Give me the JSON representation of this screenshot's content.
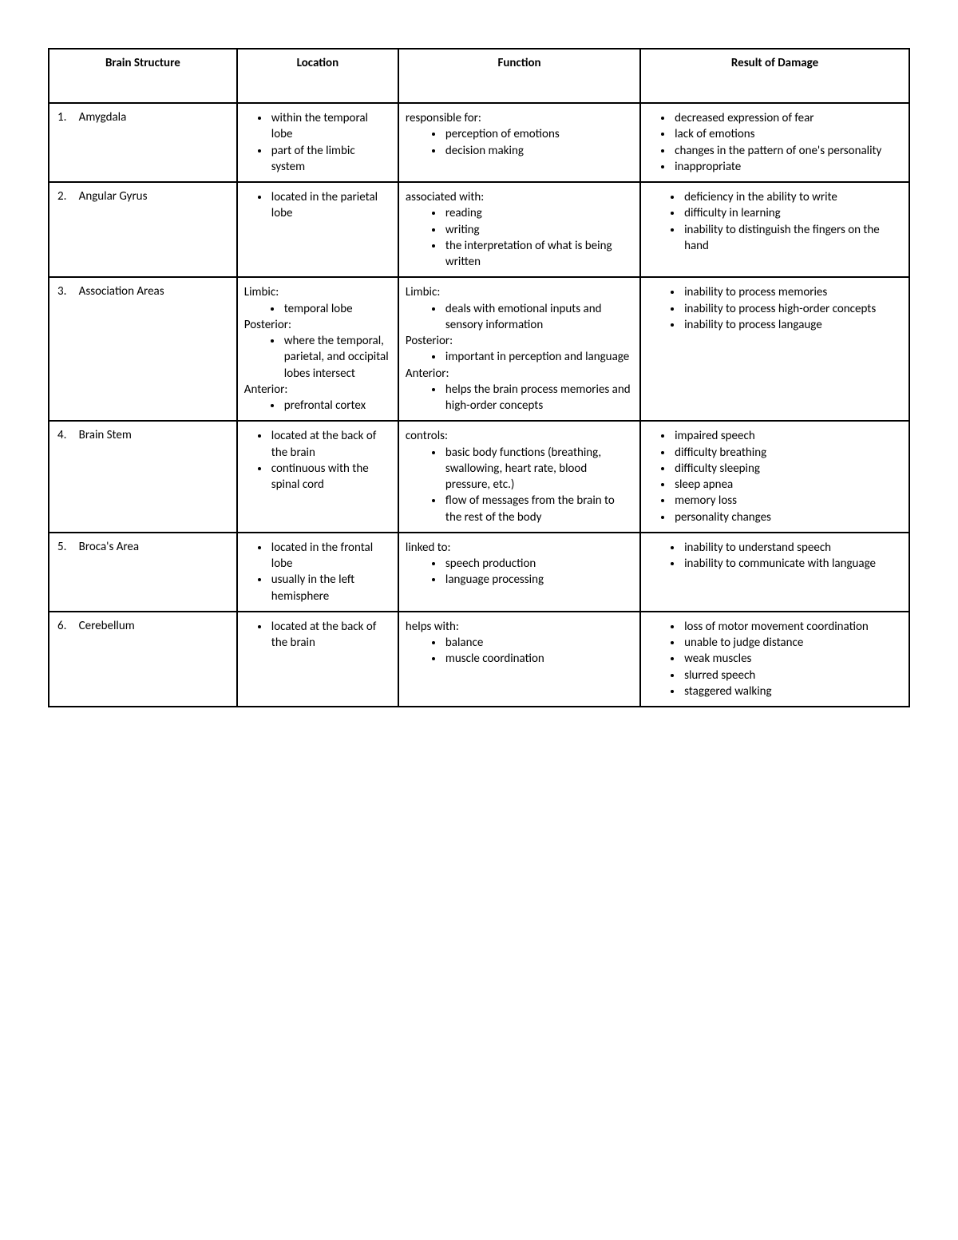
{
  "table": {
    "columns": [
      "Brain Structure",
      "Location",
      "Function",
      "Result of Damage"
    ],
    "col_widths_pct": [
      21,
      18,
      27,
      30
    ],
    "border_color": "#000000",
    "background_color": "#ffffff",
    "font_family": "Calibri",
    "font_size_pt": 11,
    "rows": [
      {
        "num": "1.",
        "name": "Amygdala",
        "location": {
          "bullets": [
            "within the temporal lobe",
            "part of the limbic system"
          ]
        },
        "function": {
          "intro": "responsible for:",
          "bullets": [
            "perception of emotions",
            "decision making"
          ]
        },
        "damage": {
          "bullets": [
            "decreased expression of fear",
            "lack of emotions",
            "changes in the pattern of one's personality",
            "inappropriate"
          ]
        }
      },
      {
        "num": "2.",
        "name": "Angular Gyrus",
        "location": {
          "bullets": [
            "located in the parietal lobe"
          ]
        },
        "function": {
          "intro": "associated with:",
          "bullets": [
            "reading",
            "writing",
            "the interpretation of what is being written"
          ]
        },
        "damage": {
          "bullets_indent": true,
          "bullets": [
            "deficiency in the ability to write",
            "difficulty in learning",
            "inability to distinguish the fingers on the hand"
          ]
        }
      },
      {
        "num": "3.",
        "name": "Association Areas",
        "location": {
          "sections": [
            {
              "label": "Limbic:",
              "bullets": [
                "temporal lobe"
              ]
            },
            {
              "label": "Posterior:",
              "bullets": [
                "where the temporal, parietal, and occipital lobes intersect"
              ]
            },
            {
              "label": "Anterior:",
              "bullets": [
                "prefrontal cortex"
              ]
            }
          ]
        },
        "function": {
          "sections": [
            {
              "label": "Limbic:",
              "bullets": [
                "deals with emotional inputs and sensory information"
              ]
            },
            {
              "label": "Posterior:",
              "bullets": [
                "important in perception and language"
              ]
            },
            {
              "label": "Anterior:",
              "bullets": [
                "helps the brain process memories and high-order concepts"
              ]
            }
          ]
        },
        "damage": {
          "bullets_indent": true,
          "bullets": [
            "inability to process memories",
            "inability to process high-order concepts",
            "inability to process langauge"
          ]
        }
      },
      {
        "num": "4.",
        "name": "Brain Stem",
        "location": {
          "bullets": [
            "located at the back of the brain",
            "continuous with the spinal cord"
          ]
        },
        "function": {
          "intro": "controls:",
          "bullets": [
            "basic body functions (breathing, swallowing, heart rate, blood pressure, etc.)",
            "flow of messages from the brain to the rest of the body"
          ]
        },
        "damage": {
          "bullets": [
            "impaired speech",
            "difficulty breathing",
            "difficulty sleeping",
            "sleep apnea",
            "memory loss",
            "personality changes"
          ]
        }
      },
      {
        "num": "5.",
        "name": "Broca's Area",
        "location": {
          "bullets": [
            "located in the frontal lobe",
            "usually in the left hemisphere"
          ]
        },
        "function": {
          "intro": "linked to:",
          "bullets": [
            "speech production",
            "language processing"
          ]
        },
        "damage": {
          "bullets_indent": true,
          "bullets": [
            "inability to understand speech",
            "inability to communicate with language"
          ]
        }
      },
      {
        "num": "6.",
        "name": "Cerebellum",
        "location": {
          "bullets": [
            "located at the back of the brain"
          ]
        },
        "function": {
          "intro": "helps with:",
          "bullets": [
            "balance",
            "muscle coordination"
          ]
        },
        "damage": {
          "bullets_indent": true,
          "bullets": [
            "loss of motor movement coordination",
            "unable to judge distance",
            "weak muscles",
            "slurred speech",
            "staggered walking"
          ]
        }
      }
    ]
  }
}
